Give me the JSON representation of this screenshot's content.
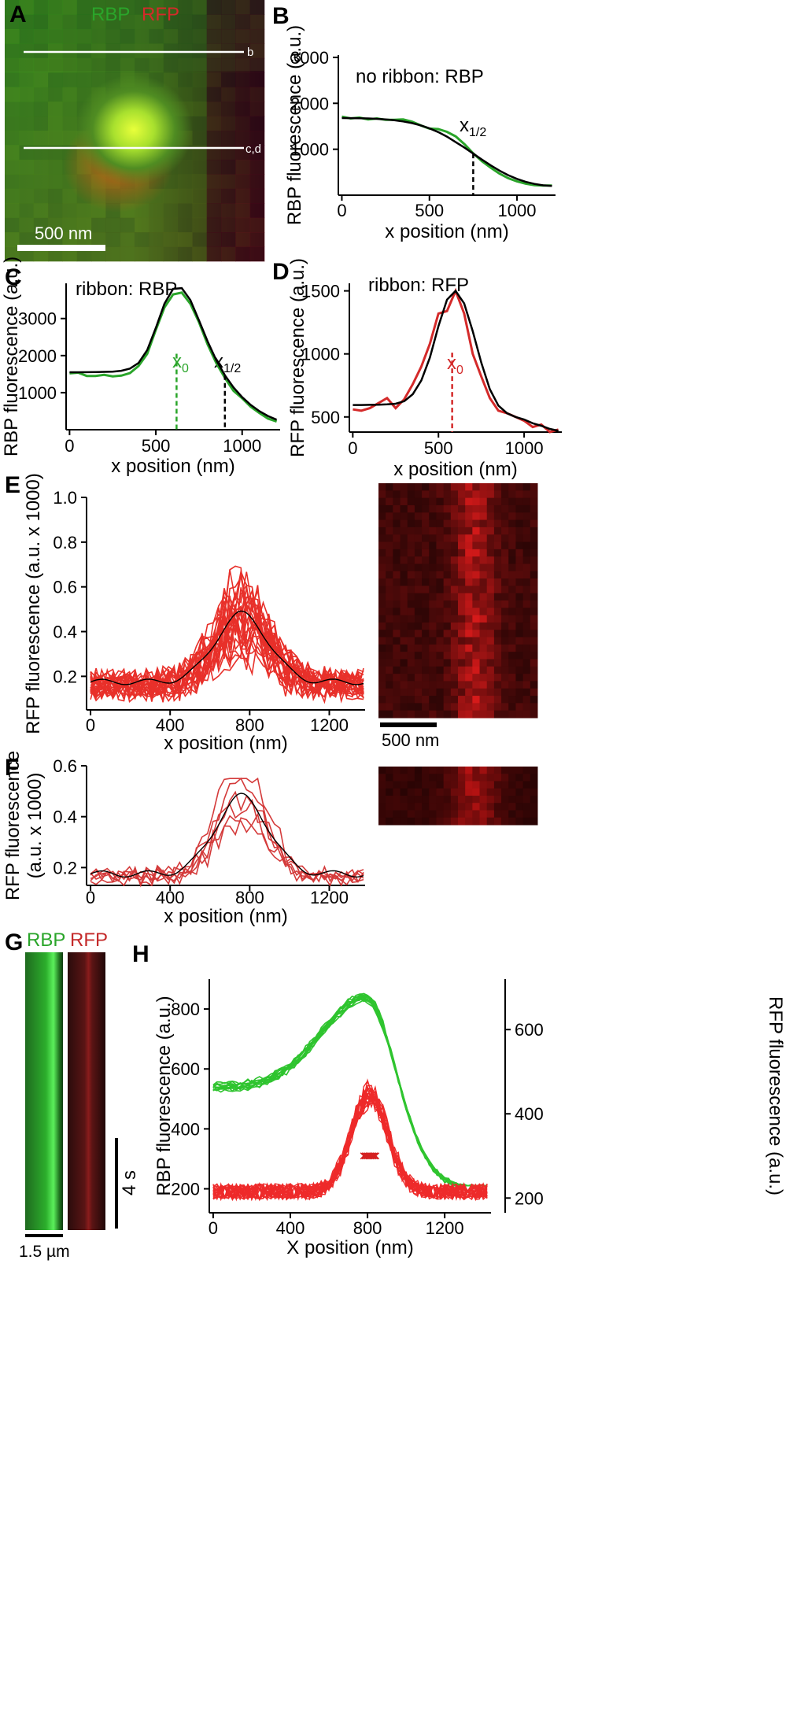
{
  "panels": {
    "A": {
      "letter": "A",
      "channel1": "RBP",
      "channel2": "RFP",
      "line_b": "b",
      "line_cd": "c,d",
      "scalebar": "500 nm",
      "colors": {
        "rbp": "#2aa52a",
        "rfp": "#d42a2a"
      }
    },
    "B": {
      "letter": "B",
      "label": "no ribbon: RBP",
      "marker": "x",
      "marker_sub": "1/2"
    },
    "C": {
      "letter": "C",
      "label": "ribbon: RBP",
      "marker0": "x",
      "marker0_sub": "0",
      "marker_half": "x",
      "marker_half_sub": "1/2"
    },
    "D": {
      "letter": "D",
      "label": "ribbon: RFP",
      "marker0": "x",
      "marker0_sub": "0"
    },
    "E": {
      "letter": "E",
      "scalebar": "500 nm"
    },
    "F": {
      "letter": "F"
    },
    "G": {
      "letter": "G",
      "channel1": "RBP",
      "channel2": "RFP",
      "time_bar": "4 s",
      "scalebar": "1.5 µm"
    },
    "H": {
      "letter": "H"
    }
  },
  "chart_data": [
    {
      "id": "B",
      "type": "line",
      "xlabel": "x position (nm)",
      "ylabel": "RBP fluorescence (a.u.)",
      "xlim": [
        -20,
        1220
      ],
      "ylim": [
        0,
        3050
      ],
      "xticks": [
        0,
        500,
        1000
      ],
      "yticks": [
        1000,
        2000,
        3000
      ],
      "series": [
        {
          "color": "#2aa52a",
          "x": [
            0,
            50,
            100,
            150,
            200,
            250,
            300,
            350,
            400,
            450,
            500,
            550,
            600,
            650,
            700,
            750,
            800,
            850,
            900,
            950,
            1000,
            1050,
            1100,
            1150,
            1200
          ],
          "y": [
            1710,
            1670,
            1690,
            1650,
            1670,
            1640,
            1640,
            1650,
            1600,
            1520,
            1450,
            1440,
            1380,
            1280,
            1110,
            910,
            740,
            600,
            470,
            370,
            300,
            250,
            220,
            210,
            210
          ]
        },
        {
          "color": "#000000",
          "x": [
            0,
            50,
            100,
            150,
            200,
            250,
            300,
            350,
            400,
            450,
            500,
            550,
            600,
            650,
            700,
            750,
            800,
            850,
            900,
            950,
            1000,
            1050,
            1100,
            1150,
            1200
          ],
          "y": [
            1680,
            1678,
            1675,
            1670,
            1662,
            1650,
            1632,
            1605,
            1570,
            1520,
            1455,
            1375,
            1275,
            1155,
            1035,
            905,
            775,
            650,
            535,
            435,
            355,
            290,
            245,
            215,
            200
          ]
        }
      ],
      "markers": [
        {
          "x": 750,
          "y": 905
        }
      ]
    },
    {
      "id": "C",
      "type": "line",
      "xlabel": "x position (nm)",
      "ylabel": "RBP fluorescence (a.u.)",
      "xlim": [
        -20,
        1220
      ],
      "ylim": [
        0,
        3950
      ],
      "xticks": [
        0,
        500,
        1000
      ],
      "yticks": [
        1000,
        2000,
        3000
      ],
      "series": [
        {
          "color": "#2aa52a",
          "x": [
            0,
            50,
            100,
            150,
            200,
            250,
            300,
            350,
            400,
            450,
            500,
            550,
            600,
            650,
            700,
            750,
            800,
            850,
            900,
            950,
            1000,
            1050,
            1100,
            1150,
            1200
          ],
          "y": [
            1520,
            1540,
            1450,
            1450,
            1480,
            1440,
            1460,
            1530,
            1720,
            2050,
            2700,
            3300,
            3650,
            3700,
            3400,
            2900,
            2300,
            1800,
            1400,
            1050,
            850,
            620,
            450,
            300,
            220
          ]
        },
        {
          "color": "#000000",
          "x": [
            0,
            50,
            100,
            150,
            200,
            250,
            300,
            350,
            400,
            450,
            500,
            550,
            600,
            650,
            700,
            750,
            800,
            850,
            900,
            950,
            1000,
            1050,
            1100,
            1150,
            1200
          ],
          "y": [
            1550,
            1550,
            1552,
            1555,
            1560,
            1565,
            1590,
            1650,
            1800,
            2150,
            2750,
            3400,
            3800,
            3820,
            3500,
            2950,
            2380,
            1880,
            1470,
            1140,
            880,
            670,
            500,
            370,
            270
          ]
        }
      ],
      "markers": [
        {
          "x": 620,
          "y": 2050,
          "color": "#2aa52a"
        },
        {
          "x": 900,
          "y": 1470,
          "color": "#000000"
        }
      ]
    },
    {
      "id": "D",
      "type": "line",
      "xlabel": "x position (nm)",
      "ylabel": "RFP fluorescence (a.u.)",
      "xlim": [
        -20,
        1220
      ],
      "ylim": [
        380,
        1560
      ],
      "xticks": [
        0,
        500,
        1000
      ],
      "yticks": [
        500,
        1000,
        1500
      ],
      "series": [
        {
          "color": "#d42a2a",
          "x": [
            0,
            50,
            100,
            150,
            200,
            250,
            300,
            350,
            400,
            450,
            500,
            550,
            600,
            650,
            700,
            750,
            800,
            850,
            900,
            950,
            1000,
            1050,
            1100,
            1150,
            1200
          ],
          "y": [
            560,
            550,
            570,
            610,
            650,
            570,
            640,
            760,
            900,
            1080,
            1320,
            1340,
            1500,
            1320,
            1000,
            820,
            650,
            550,
            530,
            500,
            470,
            420,
            440,
            380,
            400
          ]
        },
        {
          "color": "#000000",
          "x": [
            0,
            50,
            100,
            150,
            200,
            250,
            300,
            350,
            400,
            450,
            500,
            550,
            600,
            650,
            700,
            750,
            800,
            850,
            900,
            950,
            1000,
            1050,
            1100,
            1150,
            1200
          ],
          "y": [
            595,
            595,
            596,
            597,
            600,
            605,
            625,
            680,
            790,
            970,
            1220,
            1430,
            1500,
            1400,
            1180,
            930,
            720,
            590,
            530,
            500,
            480,
            450,
            430,
            405,
            390
          ]
        }
      ],
      "markers": [
        {
          "x": 580,
          "y": 1010,
          "color": "#d42a2a"
        }
      ]
    },
    {
      "id": "E",
      "type": "line",
      "xlabel": "x position (nm)",
      "ylabel": "RFP fluorescence (a.u. x 1000)",
      "xlim": [
        -20,
        1380
      ],
      "ylim": [
        0.05,
        1.0
      ],
      "xticks": [
        0,
        400,
        800,
        1200
      ],
      "yticks": [
        0.2,
        0.4,
        0.6,
        0.8,
        1.0
      ],
      "yticklabels": [
        "0.2",
        "0.4",
        "0.6",
        "0.8",
        "1.0"
      ],
      "traces": {
        "count": 24,
        "color": "#e8302a",
        "seed": 7,
        "peak": 0.48,
        "center": 760,
        "width": 130,
        "base": 0.175,
        "noise": 0.12
      }
    },
    {
      "id": "F",
      "type": "line",
      "xlabel": "x position (nm)",
      "ylabel": "RFP fluorescence",
      "ylabel2": "(a.u. x 1000)",
      "xlim": [
        -20,
        1380
      ],
      "ylim": [
        0.13,
        0.6
      ],
      "xticks": [
        0,
        400,
        800,
        1200
      ],
      "yticks": [
        0.2,
        0.4,
        0.6
      ],
      "yticklabels": [
        "0.2",
        "0.4",
        "0.6"
      ],
      "traces": {
        "count": 6,
        "color": "#d43a3a",
        "seed": 19,
        "peak": 0.48,
        "center": 760,
        "width": 130,
        "base": 0.175,
        "noise": 0.045
      }
    },
    {
      "id": "H",
      "type": "line",
      "xlabel": "X position (nm)",
      "ylabel": "RBP fluorescence (a.u.)",
      "ylabel_right": "RFP fluorescence (a.u.)",
      "xlim": [
        -20,
        1440
      ],
      "ylim": [
        120,
        900
      ],
      "ylim_right": [
        165,
        720
      ],
      "xticks": [
        0,
        400,
        800,
        1200
      ],
      "yticks": [
        200,
        400,
        600,
        800
      ],
      "yticks_right": [
        200,
        400,
        600
      ],
      "green_traces": {
        "count": 12,
        "color": "#2fc42f"
      },
      "red_traces": {
        "count": 22,
        "color": "#ee2a2a"
      }
    }
  ]
}
